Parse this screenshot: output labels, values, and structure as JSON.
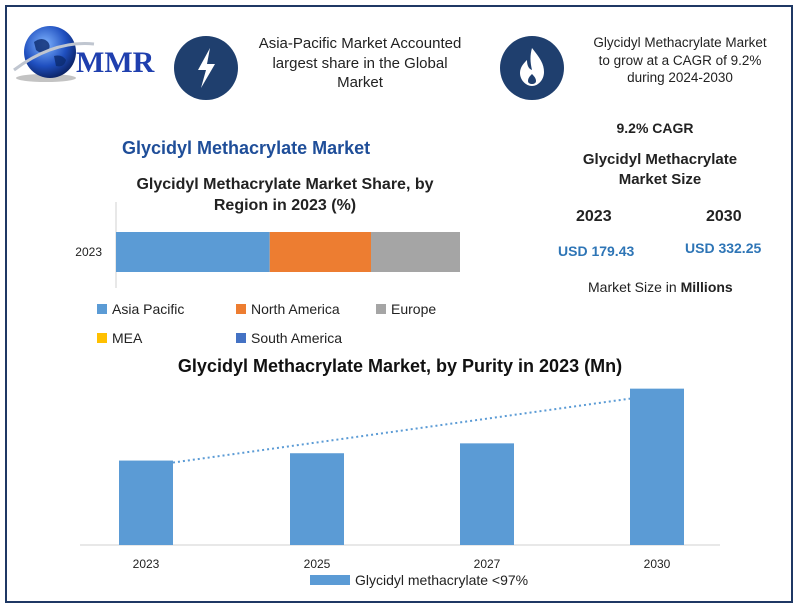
{
  "logo": {
    "text": "MMR"
  },
  "header": {
    "left_note": [
      "Asia-Pacific Market Accounted",
      "largest share in the Global",
      "Market"
    ],
    "right_note": [
      "Glycidyl Methacrylate Market",
      "to grow at a CAGR of 9.2%",
      "during 2024-2030"
    ]
  },
  "left_title": "Glycidyl Methacrylate Market",
  "share_chart_title": [
    "Glycidyl Methacrylate Market Share, by",
    "Region in 2023 (%)"
  ],
  "market_size": {
    "cagr": "9.2% CAGR",
    "title": [
      "Glycidyl Methacrylate",
      "Market Size"
    ],
    "year_a": "2023",
    "year_b": "2030",
    "value_a": "USD 179.43",
    "value_b": "USD 332.25",
    "unit_prefix": "Market Size in ",
    "unit_bold": "Millions"
  },
  "purity_chart_title": "Glycidyl Methacrylate Market, by Purity in 2023 (Mn)",
  "colors": {
    "asia_pacific": "#5b9bd5",
    "north_america": "#ed7d31",
    "europe": "#a5a5a5",
    "mea": "#ffc000",
    "south_america": "#4472c4",
    "purity_bar": "#5b9bd5",
    "icon_circle": "#1f3f6e"
  },
  "chart_data": [
    {
      "type": "bar",
      "orientation": "horizontal",
      "stacked": true,
      "categories": [
        "2023"
      ],
      "series": [
        {
          "name": "Asia Pacific",
          "values": [
            41
          ]
        },
        {
          "name": "North America",
          "values": [
            27
          ]
        },
        {
          "name": "Europe",
          "values": [
            24
          ]
        },
        {
          "name": "MEA",
          "values": [
            5
          ]
        },
        {
          "name": "South America",
          "values": [
            3
          ]
        }
      ],
      "xlim": [
        0,
        100
      ],
      "grid": false,
      "legend": "bottom"
    },
    {
      "type": "bar",
      "categories": [
        "2023",
        "2025",
        "2027",
        "2030"
      ],
      "series": [
        {
          "name": "Glycidyl methacrylate <97%",
          "values": [
            179.43,
            195,
            216,
            332.25
          ]
        }
      ],
      "trendline": true,
      "ylim": [
        0,
        340
      ],
      "grid": false,
      "legend": "bottom"
    }
  ]
}
